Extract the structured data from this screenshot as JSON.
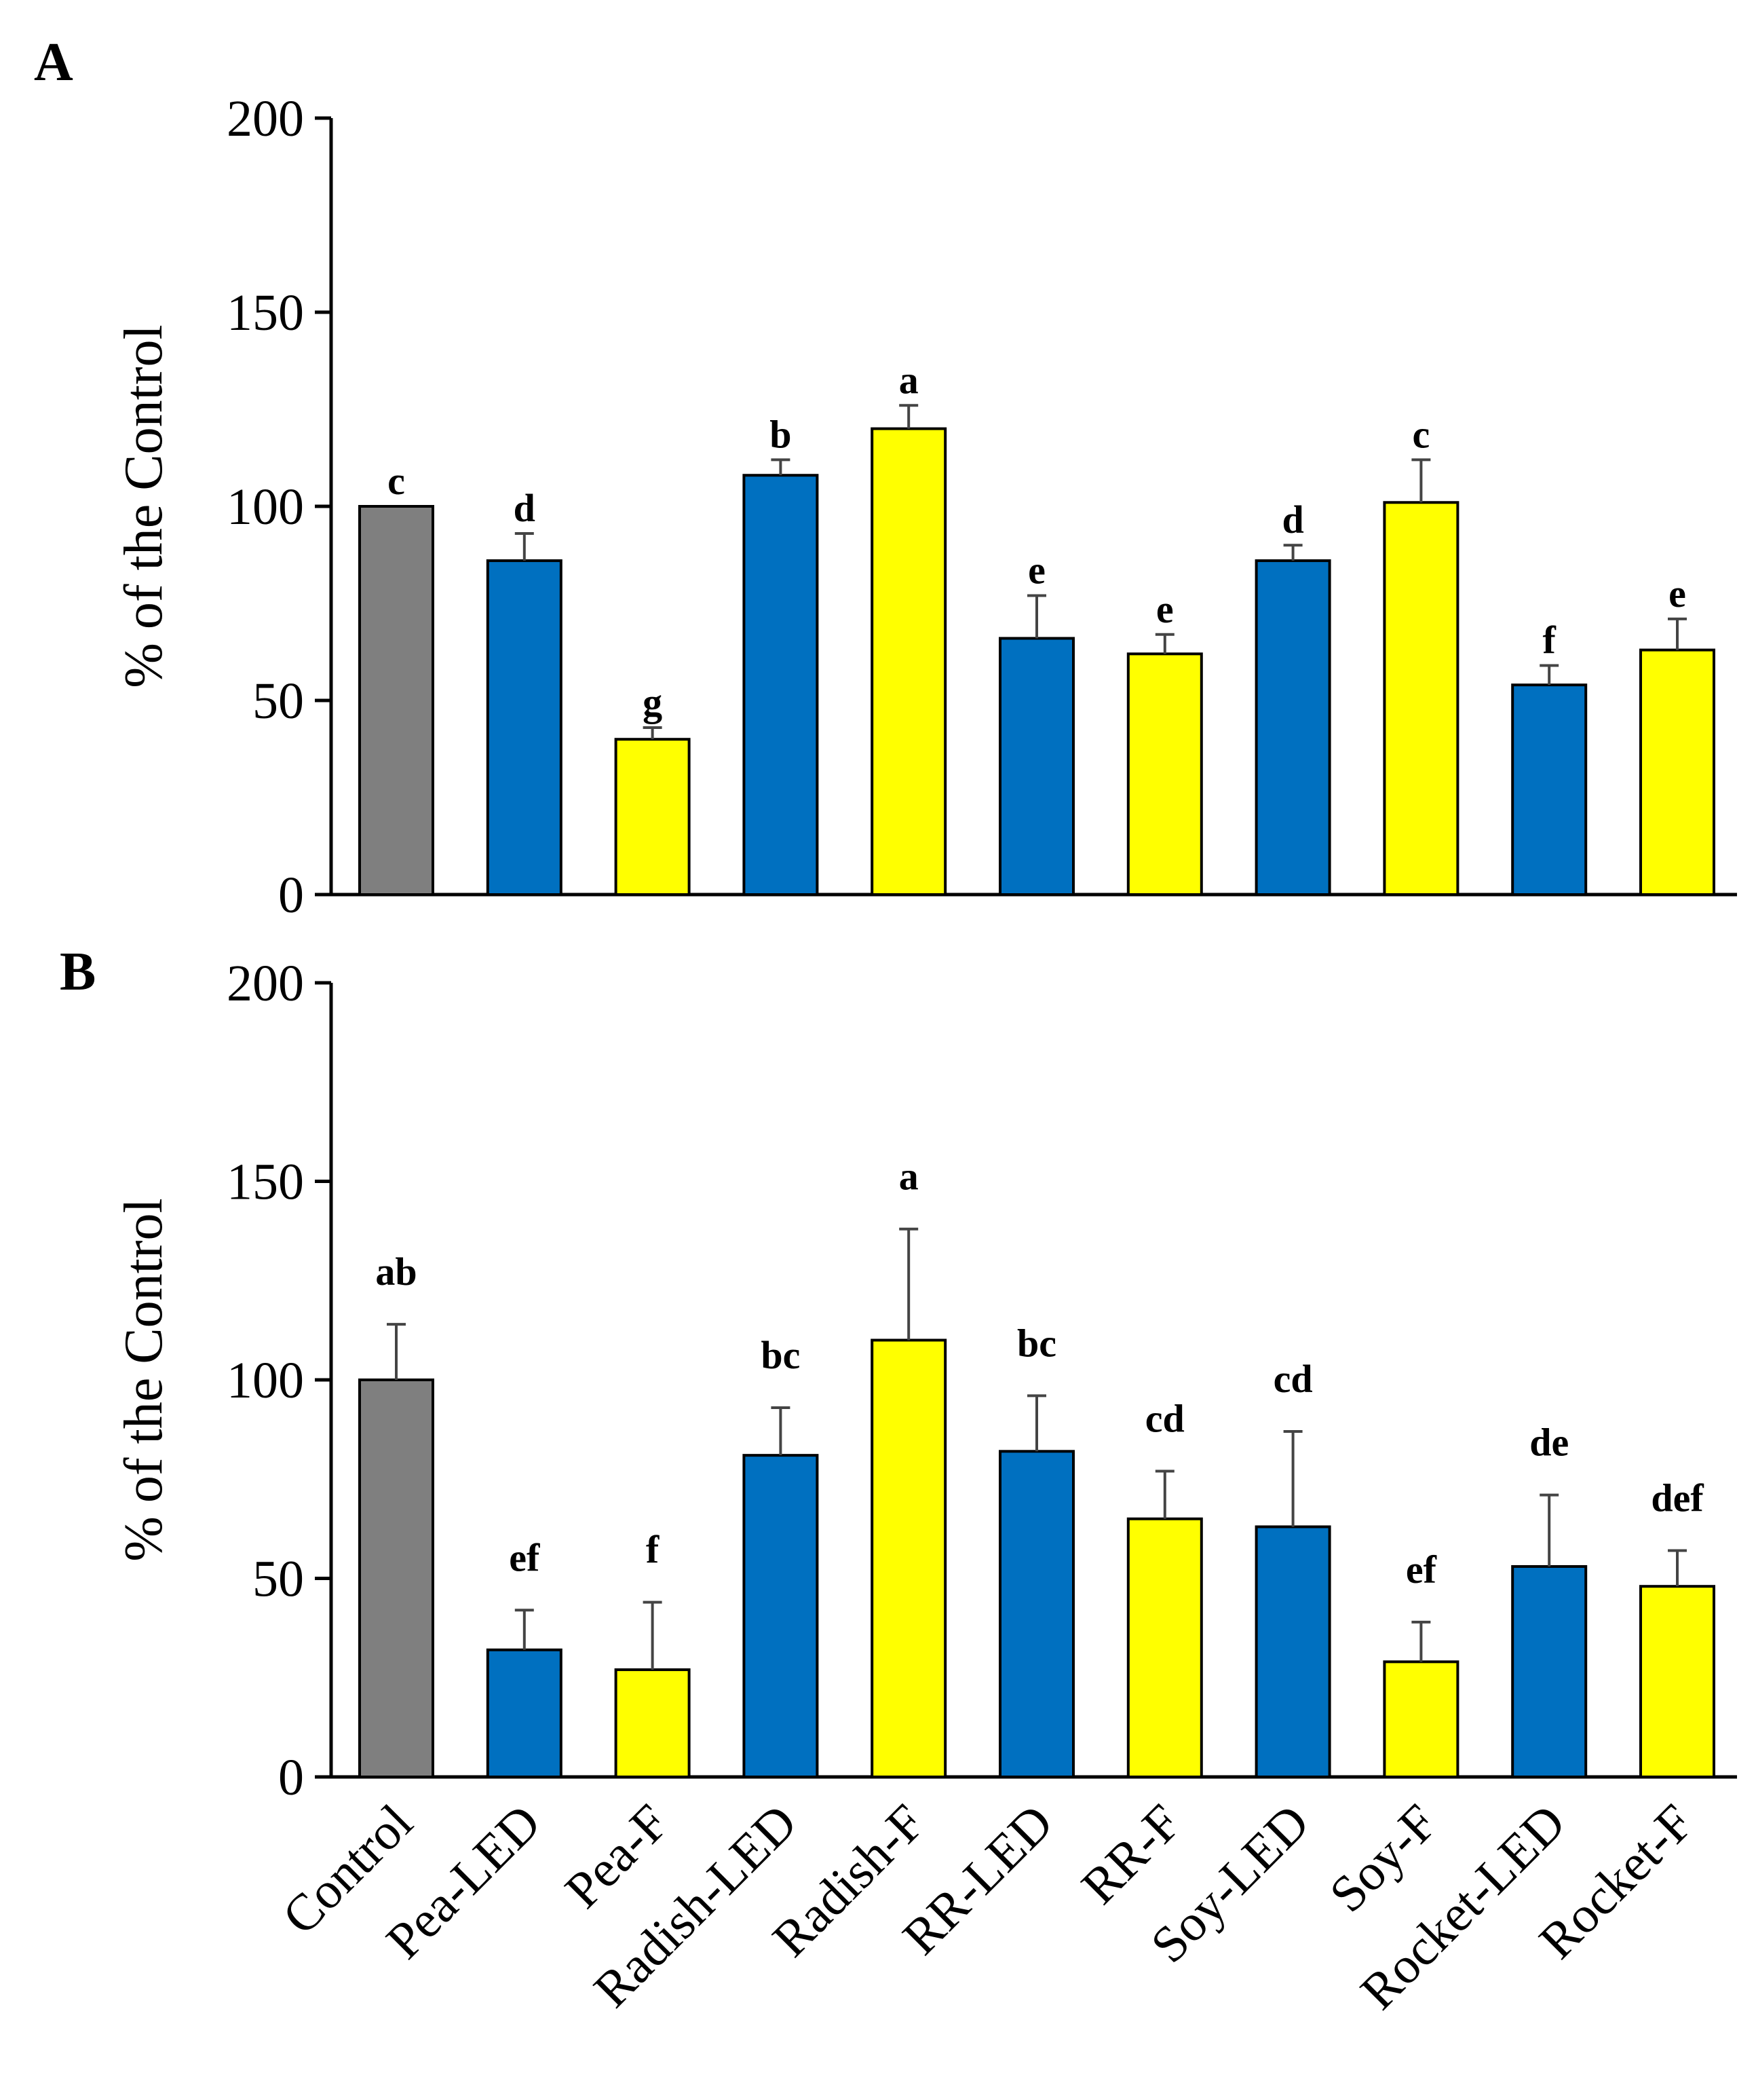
{
  "chart_data": [
    {
      "type": "bar",
      "panel": "A",
      "ylabel": "% of the Control",
      "ylim": [
        0,
        200
      ],
      "yticks": [
        0,
        50,
        100,
        150,
        200
      ],
      "categories": [
        "Control",
        "Pea-LED",
        "Pea-F",
        "Radish-LED",
        "Radish-F",
        "RR-LED",
        "RR-F",
        "Soy-LED",
        "Soy-F",
        "Rocket-LED",
        "Rocket-F"
      ],
      "values": [
        100,
        86,
        40,
        108,
        120,
        66,
        62,
        86,
        101,
        54,
        63
      ],
      "errors": [
        0,
        7,
        3,
        4,
        6,
        11,
        5,
        4,
        11,
        5,
        8
      ],
      "significance": [
        "c",
        "d",
        "g",
        "b",
        "a",
        "e",
        "e",
        "d",
        "c",
        "f",
        "e"
      ],
      "bar_colors": [
        "#7f7f7f",
        "#0070c0",
        "#ffff00",
        "#0070c0",
        "#ffff00",
        "#0070c0",
        "#ffff00",
        "#0070c0",
        "#ffff00",
        "#0070c0",
        "#ffff00"
      ],
      "grid": false
    },
    {
      "type": "bar",
      "panel": "B",
      "ylabel": "% of the Control",
      "ylim": [
        0,
        200
      ],
      "yticks": [
        0,
        50,
        100,
        150,
        200
      ],
      "categories": [
        "Control",
        "Pea-LED",
        "Pea-F",
        "Radish-LED",
        "Radish-F",
        "RR-LED",
        "RR-F",
        "Soy-LED",
        "Soy-F",
        "Rocket-LED",
        "Rocket-F"
      ],
      "values": [
        100,
        32,
        27,
        81,
        110,
        82,
        65,
        63,
        29,
        53,
        48
      ],
      "errors": [
        14,
        10,
        17,
        12,
        28,
        14,
        12,
        24,
        10,
        18,
        9
      ],
      "significance": [
        "ab",
        "ef",
        "f",
        "bc",
        "a",
        "bc",
        "cd",
        "cd",
        "ef",
        "de",
        "def"
      ],
      "bar_colors": [
        "#7f7f7f",
        "#0070c0",
        "#ffff00",
        "#0070c0",
        "#ffff00",
        "#0070c0",
        "#ffff00",
        "#0070c0",
        "#ffff00",
        "#0070c0",
        "#ffff00"
      ],
      "grid": false
    }
  ]
}
